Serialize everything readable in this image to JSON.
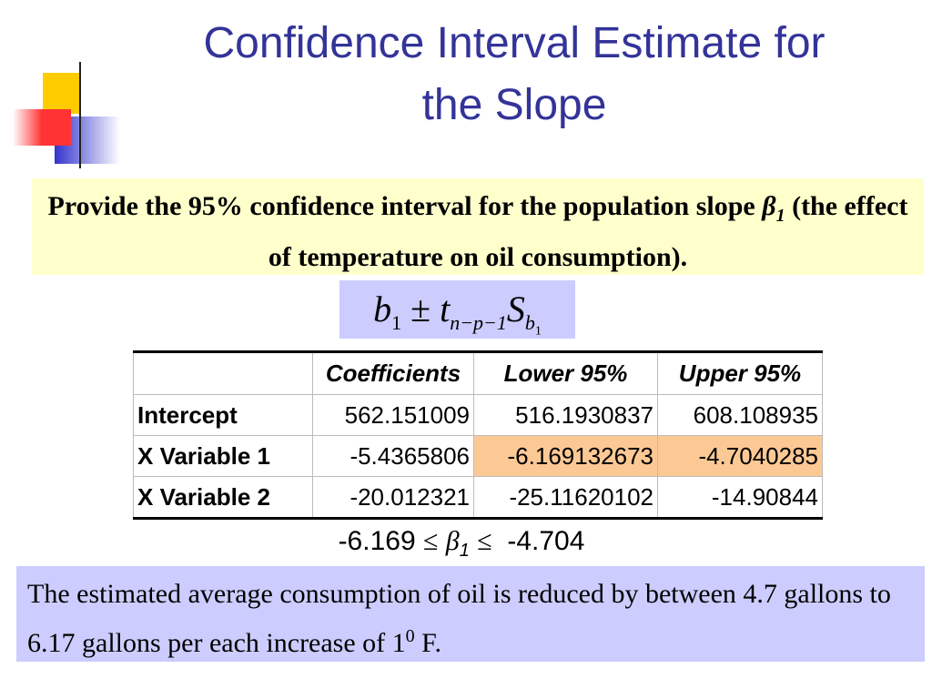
{
  "title": [
    "Confidence Interval Estimate for",
    "the Slope"
  ],
  "prompt": {
    "before": "Provide the 95% confidence interval for the population slope ",
    "symbol": "β",
    "subscript": "1",
    "after": " (the effect of temperature on oil consumption)."
  },
  "formula": {
    "b": "b",
    "b_sub": "1",
    "pm": "±",
    "t": "t",
    "t_sub": "n−p−1",
    "s": "S",
    "s_sub": "b",
    "s_sub_sub": "1"
  },
  "table": {
    "header": [
      "Coefficients",
      "Lower 95%",
      "Upper 95%"
    ],
    "rows": [
      [
        "Intercept",
        "562.151009",
        "516.1930837",
        "608.108935"
      ],
      [
        "X Variable 1",
        "-5.4365806",
        "-6.169132673",
        "-4.7040285"
      ],
      [
        "X Variable 2",
        "-20.012321",
        "-25.11620102",
        "-14.90844"
      ]
    ]
  },
  "inequality": {
    "lower": "-6.169",
    "le1": "≤",
    "symbol": "β",
    "subscript": "1",
    "le2": "≤",
    "upper": "-4.704"
  },
  "conclusion": {
    "text": "The estimated average consumption of oil is reduced by between 4.7 gallons to 6.17 gallons per each increase of 1",
    "sup": "0",
    "end": " F."
  }
}
